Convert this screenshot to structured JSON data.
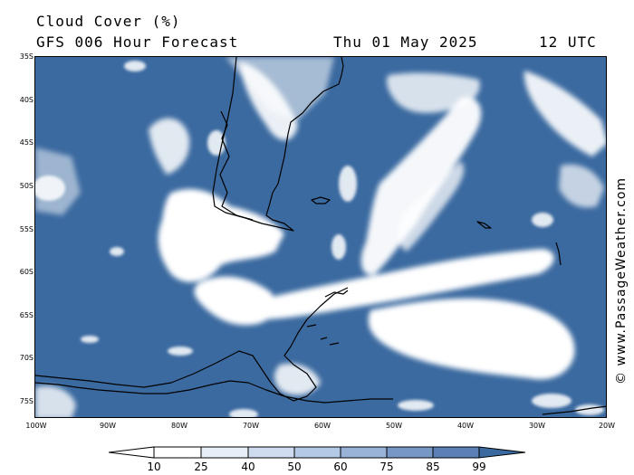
{
  "header": {
    "title": "Cloud Cover (%)",
    "subtitle": "GFS 006 Hour Forecast",
    "date": "Thu 01 May 2025",
    "time": "12 UTC"
  },
  "credit": "© www.PassageWeather.com",
  "map": {
    "ocean_color": "#3b6aa0",
    "cloud_color": "#ffffff",
    "coast_color": "#000000",
    "lat_labels": [
      "35S",
      "40S",
      "45S",
      "50S",
      "55S",
      "60S",
      "65S",
      "70S",
      "75S"
    ],
    "lon_labels": [
      "100W",
      "90W",
      "80W",
      "70W",
      "60W",
      "50W",
      "40W",
      "30W",
      "20W"
    ]
  },
  "legend": {
    "values": [
      "10",
      "25",
      "40",
      "50",
      "60",
      "75",
      "85",
      "99"
    ],
    "colors": [
      "#ffffff",
      "#e7eef7",
      "#cfdcef",
      "#b4c9e5",
      "#98b2d8",
      "#7797c6",
      "#5b80b7",
      "#3b6aa0"
    ]
  }
}
